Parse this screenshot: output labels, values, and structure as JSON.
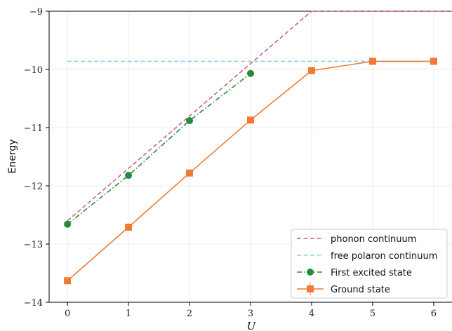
{
  "chart_data": {
    "type": "line",
    "title": "",
    "xlabel": "U",
    "ylabel": "Energy",
    "xlim": [
      -0.3,
      6.3
    ],
    "ylim": [
      -14,
      -9
    ],
    "xticks": [
      0,
      1,
      2,
      3,
      4,
      5,
      6
    ],
    "yticks": [
      -14,
      -13,
      -12,
      -11,
      -10,
      -9
    ],
    "xtick_labels": [
      "0",
      "1",
      "2",
      "3",
      "4",
      "5",
      "6"
    ],
    "ytick_labels": [
      "−14",
      "−13",
      "−12",
      "−11",
      "−10",
      "−9"
    ],
    "grid": true,
    "legend_position": "bottom-right",
    "series": [
      {
        "name": "phonon continuum",
        "style": "dashed",
        "color": "#c8647e",
        "x": [
          0,
          4,
          6.3
        ],
        "y": [
          -12.6,
          -9.0,
          -9.0
        ]
      },
      {
        "name": "free polaron continuum",
        "style": "dashed",
        "color": "#88d0e6",
        "x": [
          0,
          6
        ],
        "y": [
          -9.86,
          -9.86
        ]
      },
      {
        "name": "First excited state",
        "style": "dashdot",
        "marker": "circle",
        "color": "#2a8a3c",
        "x": [
          0,
          1,
          2,
          3
        ],
        "y": [
          -12.66,
          -11.82,
          -10.88,
          -10.07
        ]
      },
      {
        "name": "Ground state",
        "style": "solid",
        "marker": "square",
        "color": "#f07a35",
        "x": [
          0,
          1,
          2,
          3,
          4,
          5,
          6
        ],
        "y": [
          -13.63,
          -12.71,
          -11.78,
          -10.87,
          -10.02,
          -9.86,
          -9.86
        ]
      }
    ]
  }
}
